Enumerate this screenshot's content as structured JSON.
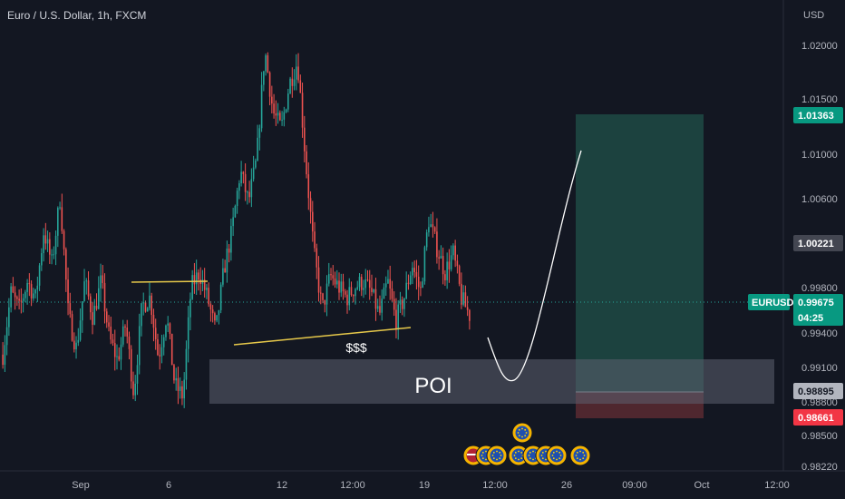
{
  "header": {
    "title": "Euro / U.S. Dollar, 1h, FXCM"
  },
  "price_axis": {
    "currency": "USD",
    "ticks": [
      "1.02000",
      "1.01500",
      "1.01000",
      "1.00600",
      "0.99800",
      "0.99400",
      "0.99100",
      "0.98800",
      "0.98500",
      "0.98220"
    ]
  },
  "time_axis": {
    "ticks": [
      "Sep",
      "6",
      "12",
      "12:00",
      "19",
      "12:00",
      "26",
      "09:00",
      "Oct",
      "12:00"
    ]
  },
  "price_tags": {
    "target": "1.01363",
    "level": "1.00221",
    "symbol": "EURUSD",
    "current": "0.99675",
    "countdown": "04:25",
    "entry": "0.98895",
    "stop": "0.98661"
  },
  "annotations": {
    "poi_label": "POI",
    "liquidity_label": "$$$"
  },
  "colors": {
    "background": "#131722",
    "bull": "#26a69a",
    "bear": "#ef5350",
    "profit_zone": "#1f4a44",
    "loss_zone": "#5a2a31",
    "poi_zone": "#3a3e4a",
    "trendline": "#e6c84a"
  },
  "chart_data": {
    "type": "candlestick",
    "symbol": "EURUSD",
    "timeframe": "1h",
    "ylim": [
      0.9822,
      1.0215
    ],
    "key_levels": {
      "take_profit": 1.01363,
      "entry": 0.98895,
      "stop_loss": 0.98661,
      "poi_zone": [
        0.9875,
        0.9917
      ],
      "current_price": 0.99675
    },
    "close_path": [
      0.9925,
      0.998,
      0.9965,
      0.999,
      0.9975,
      1.0035,
      1.0005,
      1.0065,
      0.996,
      0.993,
      0.999,
      0.9958,
      0.999,
      0.994,
      0.992,
      0.9952,
      0.989,
      0.9968,
      0.9976,
      0.9922,
      0.996,
      0.9898,
      0.9888,
      0.9985,
      0.9998,
      0.9975,
      0.9945,
      1.0,
      1.0035,
      1.0088,
      1.006,
      1.0098,
      1.0195,
      1.014,
      1.0125,
      1.0165,
      1.0185,
      1.0095,
      1.0015,
      0.9965,
      0.9995,
      0.9985,
      0.9975,
      0.9985,
      0.999,
      0.998,
      0.996,
      0.999,
      0.9955,
      0.9975,
      1.0005,
      0.998,
      1.0045,
      1.002,
      0.9998,
      1.0015,
      0.9975,
      0.996
    ],
    "economic_events": [
      "US",
      "EU",
      "EU",
      "EU",
      "EU",
      "EU",
      "EU",
      "EU",
      "EU"
    ]
  }
}
